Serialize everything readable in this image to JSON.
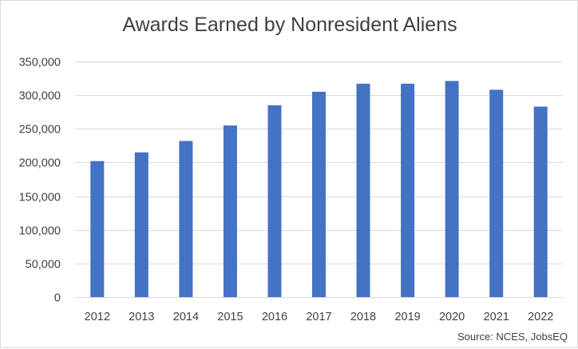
{
  "chart_data": {
    "type": "bar",
    "title": "Awards Earned by Nonresident Aliens",
    "source": "Source: NCES, JobsEQ",
    "xlabel": "",
    "ylabel": "",
    "categories": [
      "2012",
      "2013",
      "2014",
      "2015",
      "2016",
      "2017",
      "2018",
      "2019",
      "2020",
      "2021",
      "2022"
    ],
    "values": [
      202000,
      215000,
      232000,
      255000,
      285000,
      305000,
      317000,
      317000,
      321000,
      308000,
      283000
    ],
    "ylim": [
      0,
      350000
    ],
    "yticks": [
      "0",
      "50,000",
      "100,000",
      "150,000",
      "200,000",
      "250,000",
      "300,000",
      "350,000"
    ],
    "ytick_values": [
      0,
      50000,
      100000,
      150000,
      200000,
      250000,
      300000,
      350000
    ],
    "grid": true,
    "legend": "none",
    "bar_color": "#4472c4",
    "grid_color": "#d9d9d9"
  }
}
